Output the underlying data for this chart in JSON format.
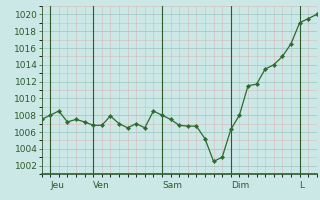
{
  "x_values": [
    0,
    1,
    2,
    3,
    4,
    5,
    6,
    7,
    8,
    9,
    10,
    11,
    12,
    13,
    14,
    15,
    16,
    17,
    18,
    19,
    20,
    21,
    22,
    23,
    24,
    25,
    26,
    27,
    28,
    29,
    30,
    31,
    32
  ],
  "y_values": [
    1007.5,
    1008.0,
    1008.5,
    1007.2,
    1007.5,
    1007.2,
    1006.8,
    1006.8,
    1007.9,
    1007.0,
    1006.5,
    1007.0,
    1006.5,
    1008.5,
    1008.0,
    1007.5,
    1006.8,
    1006.7,
    1006.7,
    1005.2,
    1002.5,
    1003.0,
    1006.3,
    1008.0,
    1011.5,
    1011.7,
    1013.5,
    1014.0,
    1015.0,
    1016.5,
    1019.0,
    1019.5,
    1020.0
  ],
  "x_tick_positions": [
    1,
    6,
    14,
    22,
    30
  ],
  "x_tick_labels": [
    "Jeu",
    "Ven",
    "Sam",
    "Dim",
    "L"
  ],
  "x_vlines": [
    1,
    6,
    14,
    22,
    30
  ],
  "ylim": [
    1001,
    1021
  ],
  "xlim": [
    0,
    32
  ],
  "yticks": [
    1002,
    1004,
    1006,
    1008,
    1010,
    1012,
    1014,
    1016,
    1018,
    1020
  ],
  "line_color": "#2d6a2d",
  "marker_color": "#2d6a2d",
  "bg_color": "#cce8e6",
  "major_grid_color": "#aecece",
  "minor_grid_color": "#c4e0de",
  "vline_color": "#2d5a2d",
  "tick_label_color": "#2d5a2d",
  "bottom_spine_color": "#2d5a2d"
}
